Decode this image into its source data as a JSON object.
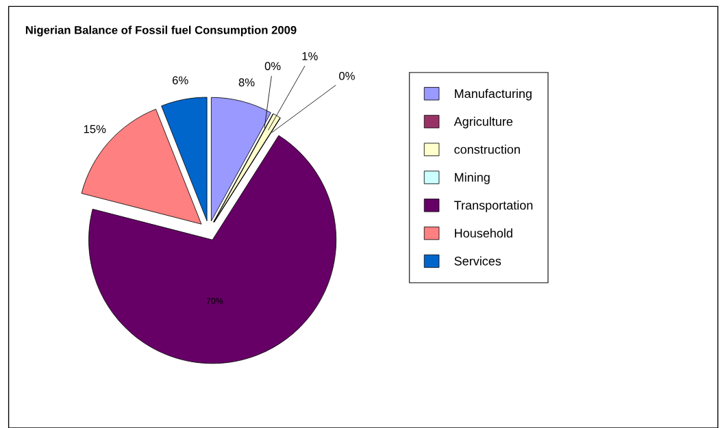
{
  "chart_data": {
    "type": "pie",
    "title": "Nigerian Balance of Fossil fuel Consumption 2009",
    "categories": [
      "Manufacturing",
      "Agriculture",
      "construction",
      "Mining",
      "Transportation",
      "Household",
      "Services"
    ],
    "values": [
      8,
      0,
      1,
      0,
      70,
      15,
      6
    ],
    "value_labels": [
      "8%",
      "0%",
      "1%",
      "0%",
      "70%",
      "15%",
      "6%"
    ],
    "colors": [
      "#9999ff",
      "#993366",
      "#ffffcc",
      "#ccffff",
      "#660066",
      "#ff8080",
      "#0066cc"
    ],
    "legend": "right"
  }
}
